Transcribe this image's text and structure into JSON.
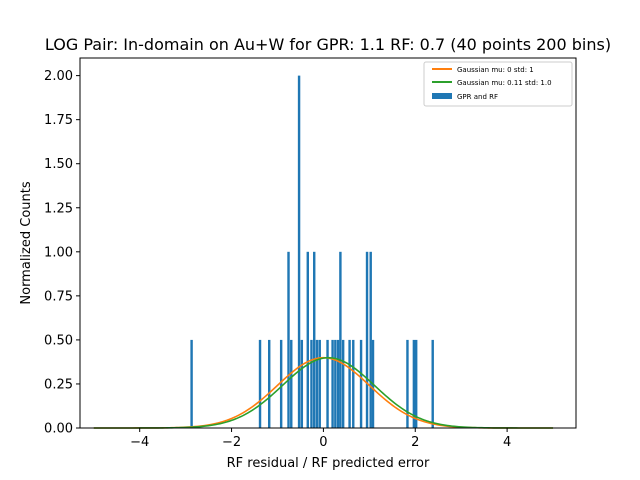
{
  "chart_data": {
    "type": "bar",
    "title": "LOG Pair: In-domain on Au+W for GPR: 1.1 RF: 0.7 (40 points 200 bins)",
    "xlabel": "RF residual / RF predicted error",
    "ylabel": "Normalized Counts",
    "xlim": [
      -5.3,
      5.5
    ],
    "ylim": [
      0,
      2.1
    ],
    "xticks": [
      -4,
      -2,
      0,
      2,
      4
    ],
    "xtick_labels": [
      "−4",
      "−2",
      "0",
      "2",
      "4"
    ],
    "yticks": [
      0.0,
      0.25,
      0.5,
      0.75,
      1.0,
      1.25,
      1.5,
      1.75,
      2.0
    ],
    "ytick_labels": [
      "0.00",
      "0.25",
      "0.50",
      "0.75",
      "1.00",
      "1.25",
      "1.50",
      "1.75",
      "2.00"
    ],
    "grid": false,
    "legend_position": "top-right",
    "histogram": {
      "name": "GPR and RF",
      "color": "#1f77b4",
      "bin_width": 0.0526,
      "bars": [
        {
          "x": -2.87,
          "y": 0.5
        },
        {
          "x": -1.38,
          "y": 0.5
        },
        {
          "x": -1.18,
          "y": 0.5
        },
        {
          "x": -0.92,
          "y": 0.5
        },
        {
          "x": -0.76,
          "y": 1.0
        },
        {
          "x": -0.7,
          "y": 0.5
        },
        {
          "x": -0.53,
          "y": 2.0
        },
        {
          "x": -0.47,
          "y": 0.5
        },
        {
          "x": -0.34,
          "y": 1.0
        },
        {
          "x": -0.26,
          "y": 0.5
        },
        {
          "x": -0.2,
          "y": 1.0
        },
        {
          "x": -0.14,
          "y": 0.5
        },
        {
          "x": -0.08,
          "y": 0.5
        },
        {
          "x": 0.09,
          "y": 0.5
        },
        {
          "x": 0.2,
          "y": 0.5
        },
        {
          "x": 0.26,
          "y": 0.5
        },
        {
          "x": 0.32,
          "y": 0.5
        },
        {
          "x": 0.37,
          "y": 1.0
        },
        {
          "x": 0.43,
          "y": 0.5
        },
        {
          "x": 0.57,
          "y": 0.5
        },
        {
          "x": 0.65,
          "y": 0.5
        },
        {
          "x": 0.82,
          "y": 0.5
        },
        {
          "x": 0.95,
          "y": 1.0
        },
        {
          "x": 1.03,
          "y": 1.0
        },
        {
          "x": 1.08,
          "y": 0.5
        },
        {
          "x": 1.83,
          "y": 0.5
        },
        {
          "x": 1.97,
          "y": 0.5
        },
        {
          "x": 2.02,
          "y": 0.5
        },
        {
          "x": 2.38,
          "y": 0.5
        }
      ]
    },
    "series": [
      {
        "name": "Gaussian mu: 0 std: 1",
        "type": "line",
        "color": "#ff7f0e",
        "mu": 0,
        "std": 1,
        "x_range": [
          -5,
          5
        ]
      },
      {
        "name": "Gaussian mu: 0.11 std: 1.0",
        "type": "line",
        "color": "#2ca02c",
        "mu": 0.11,
        "std": 1.0,
        "x_range": [
          -5,
          5
        ]
      }
    ]
  }
}
